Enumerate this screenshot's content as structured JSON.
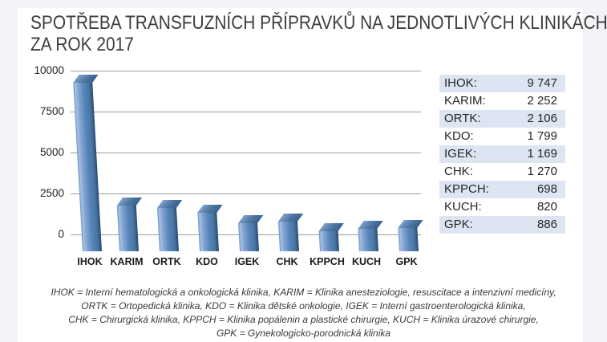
{
  "title": {
    "line1": "SPOTŘEBA TRANSFUZNÍCH PŘÍPRAVKŮ NA JEDNOTLIVÝCH KLINIKÁCH",
    "line2": "ZA ROK 2017"
  },
  "chart_data": {
    "type": "bar",
    "style": "3d-column",
    "categories": [
      "IHOK",
      "KARIM",
      "ORTK",
      "KDO",
      "IGEK",
      "CHK",
      "KPPCH",
      "KUCH",
      "GPK"
    ],
    "values": [
      9747,
      2252,
      2106,
      1799,
      1169,
      1270,
      698,
      820,
      886
    ],
    "title": "",
    "xlabel": "",
    "ylabel": "",
    "ylim": [
      0,
      10000
    ],
    "yticks": [
      0,
      2500,
      5000,
      7500,
      10000
    ],
    "grid": true,
    "legend": false,
    "bar_color": "#4f81bd"
  },
  "table": {
    "rows": [
      {
        "label": "IHOK:",
        "value": "9 747"
      },
      {
        "label": "KARIM:",
        "value": "2 252"
      },
      {
        "label": "ORTK:",
        "value": "2 106"
      },
      {
        "label": "KDO:",
        "value": "1 799"
      },
      {
        "label": "IGEK:",
        "value": "1 169"
      },
      {
        "label": "CHK:",
        "value": "1 270"
      },
      {
        "label": "KPPCH:",
        "value": "698"
      },
      {
        "label": "KUCH:",
        "value": "820"
      },
      {
        "label": "GPK:",
        "value": "886"
      }
    ],
    "stripe_color": "#dde4f2"
  },
  "footer": {
    "lines": [
      "IHOK = Interní hematologická a onkologická klinika, KARIM = Klinika anesteziologie, resuscitace a intenzivní medicíny,",
      "ORTK = Ortopedická klinika, KDO = Klinika dětské onkologie, IGEK = Interní gastroenterologická klinika,",
      "CHK = Chirurgická klinika,  KPPCH = Klinika popálenin a plastické chirurgie, KUCH = Klinika úrazové chirurgie,",
      "GPK = Gynekologicko-porodnická klinika"
    ]
  }
}
